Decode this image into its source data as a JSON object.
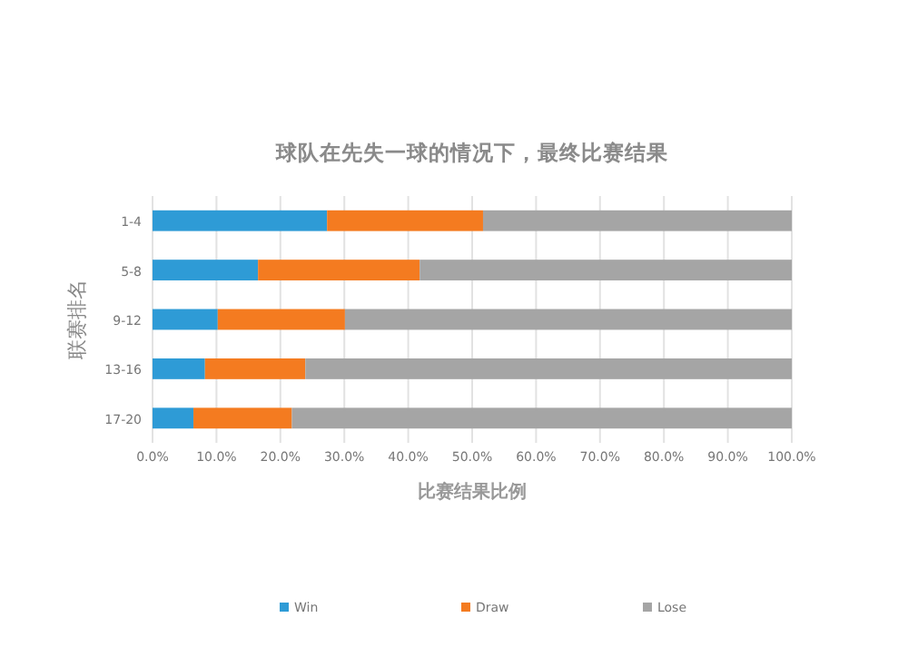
{
  "chart_data": {
    "type": "bar",
    "orientation": "horizontal",
    "stacked": true,
    "title": "球队在先失一球的情况下，最终比赛结果",
    "xlabel": "比赛结果比例",
    "ylabel": "联赛排名",
    "categories": [
      "1-4",
      "5-8",
      "9-12",
      "13-16",
      "17-20"
    ],
    "series": [
      {
        "name": "Win",
        "color": "#2e9bd6",
        "values": [
          27.3,
          16.5,
          10.2,
          8.2,
          6.4
        ]
      },
      {
        "name": "Draw",
        "color": "#f47b20",
        "values": [
          24.4,
          25.3,
          19.9,
          15.7,
          15.4
        ]
      },
      {
        "name": "Lose",
        "color": "#a5a5a5",
        "values": [
          48.3,
          58.2,
          69.9,
          76.1,
          78.2
        ]
      }
    ],
    "xlim": [
      0,
      100
    ],
    "xticks": [
      {
        "value": 0,
        "label": "0.0%"
      },
      {
        "value": 10,
        "label": "10.0%"
      },
      {
        "value": 20,
        "label": "20.0%"
      },
      {
        "value": 30,
        "label": "30.0%"
      },
      {
        "value": 40,
        "label": "40.0%"
      },
      {
        "value": 50,
        "label": "50.0%"
      },
      {
        "value": 60,
        "label": "60.0%"
      },
      {
        "value": 70,
        "label": "70.0%"
      },
      {
        "value": 80,
        "label": "80.0%"
      },
      {
        "value": 90,
        "label": "90.0%"
      },
      {
        "value": 100,
        "label": "100.0%"
      }
    ],
    "grid": "x",
    "legend": "bottom"
  }
}
